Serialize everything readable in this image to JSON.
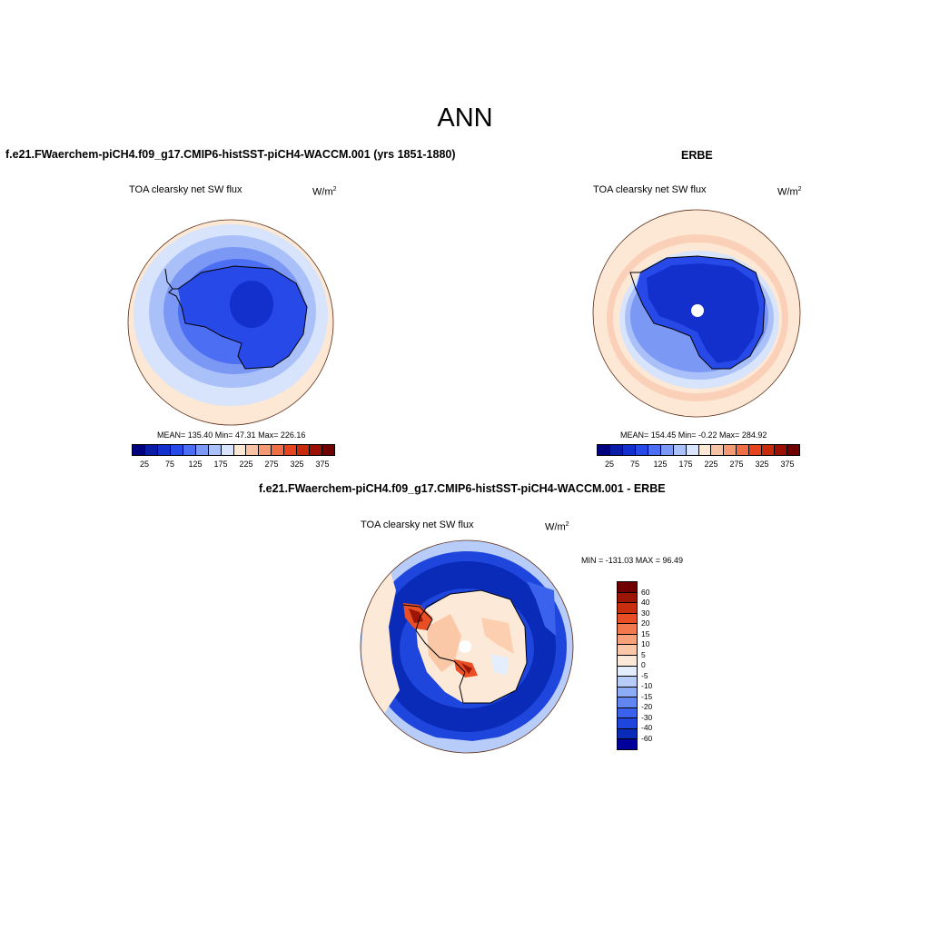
{
  "main_title": "ANN",
  "panels": {
    "model": {
      "case_title": "f.e21.FWaerchem-piCH4.f09_g17.CMIP6-histSST-piCH4-WACCM.001 (yrs 1851-1880)",
      "var_title": "TOA clearsky net SW flux",
      "units": "W/m",
      "units_sup": "2",
      "stats": "MEAN= 135.40  Min=  47.31  Max= 226.16"
    },
    "obs": {
      "case_title": "ERBE",
      "var_title": "TOA clearsky net SW flux",
      "units": "W/m",
      "units_sup": "2",
      "stats": "MEAN= 154.45  Min=  -0.22  Max= 284.92"
    },
    "diff": {
      "case_title": "f.e21.FWaerchem-piCH4.f09_g17.CMIP6-histSST-piCH4-WACCM.001 - ERBE",
      "var_title": "TOA clearsky net SW flux",
      "units": "W/m",
      "units_sup": "2",
      "stats": "MIN = -131.03 MAX =  96.49"
    }
  },
  "abs_colorbar": {
    "colors": [
      "#00007f",
      "#0a1ba6",
      "#1330cc",
      "#2749e8",
      "#4c6ef2",
      "#7b98f5",
      "#a9c0f8",
      "#d7e4fb",
      "#fde8d6",
      "#f8c2a4",
      "#f39a74",
      "#ef6e45",
      "#e6441f",
      "#c82a0c",
      "#9c1004",
      "#700000"
    ],
    "labels": [
      "25",
      "75",
      "125",
      "175",
      "225",
      "275",
      "325",
      "375"
    ]
  },
  "diff_colorbar": {
    "colors": [
      "#00009a",
      "#0a2ab8",
      "#1e46dc",
      "#3a62ec",
      "#6186f2",
      "#8cacf6",
      "#b7ccf9",
      "#e3edfc",
      "#fde9d8",
      "#fbc8a7",
      "#f7a079",
      "#f2784d",
      "#e84f24",
      "#c82f0e",
      "#9c1505",
      "#700000"
    ],
    "labels": [
      "60",
      "40",
      "30",
      "20",
      "15",
      "10",
      "5",
      "0",
      "-5",
      "-10",
      "-15",
      "-20",
      "-30",
      "-40",
      "-60"
    ]
  }
}
